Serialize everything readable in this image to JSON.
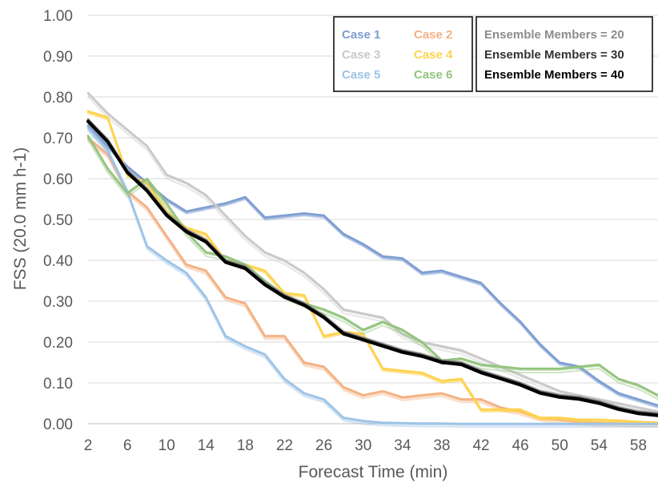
{
  "chart_data": {
    "type": "line",
    "xlabel": "Forecast Time (min)",
    "ylabel": "FSS (20.0 mm h-1)",
    "xlim": [
      2,
      60
    ],
    "ylim": [
      0,
      1.0
    ],
    "x_ticks": [
      "2",
      "6",
      "10",
      "14",
      "18",
      "22",
      "26",
      "30",
      "34",
      "38",
      "42",
      "46",
      "50",
      "54",
      "58"
    ],
    "y_ticks": [
      "0.00",
      "0.10",
      "0.20",
      "0.30",
      "0.40",
      "0.50",
      "0.60",
      "0.70",
      "0.80",
      "0.90",
      "1.00"
    ],
    "grid": "horizontal",
    "legend_cases": {
      "placement": "top",
      "entries": [
        {
          "label": "Case 1",
          "color": "#7e9dd2"
        },
        {
          "label": "Case 2",
          "color": "#f4b183"
        },
        {
          "label": "Case 3",
          "color": "#c9c9c9"
        },
        {
          "label": "Case 4",
          "color": "#ffd24d"
        },
        {
          "label": "Case 5",
          "color": "#9dc3e6"
        },
        {
          "label": "Case 6",
          "color": "#93c47d"
        }
      ]
    },
    "legend_members": {
      "placement": "top-right",
      "entries": [
        {
          "label": "Ensemble Members = 20",
          "color": "#8c8c8c"
        },
        {
          "label": "Ensemble Members = 30",
          "color": "#333333"
        },
        {
          "label": "Ensemble Members = 40",
          "color": "#000000"
        }
      ]
    },
    "x": [
      2,
      4,
      6,
      8,
      10,
      12,
      14,
      16,
      18,
      20,
      22,
      24,
      26,
      28,
      30,
      32,
      34,
      36,
      38,
      40,
      42,
      44,
      46,
      48,
      50,
      52,
      54,
      56,
      58,
      60
    ],
    "series": [
      {
        "name": "Case 1",
        "color": "#7e9dd2",
        "values": [
          0.73,
          0.68,
          0.63,
          0.59,
          0.55,
          0.52,
          0.53,
          0.54,
          0.555,
          0.505,
          0.51,
          0.515,
          0.51,
          0.465,
          0.44,
          0.41,
          0.405,
          0.37,
          0.375,
          0.36,
          0.345,
          0.295,
          0.25,
          0.195,
          0.15,
          0.14,
          0.105,
          0.075,
          0.06,
          0.045
        ]
      },
      {
        "name": "Case 2",
        "color": "#f4b183",
        "values": [
          0.7,
          0.66,
          0.57,
          0.53,
          0.46,
          0.39,
          0.375,
          0.31,
          0.295,
          0.215,
          0.215,
          0.15,
          0.14,
          0.09,
          0.07,
          0.08,
          0.065,
          0.07,
          0.075,
          0.06,
          0.06,
          0.04,
          0.03,
          0.015,
          0.01,
          0.005,
          0.003,
          0.002,
          0.001,
          0.0
        ]
      },
      {
        "name": "Case 3",
        "color": "#c9c9c9",
        "values": [
          0.81,
          0.76,
          0.72,
          0.68,
          0.61,
          0.59,
          0.56,
          0.51,
          0.46,
          0.42,
          0.4,
          0.37,
          0.33,
          0.28,
          0.27,
          0.26,
          0.22,
          0.2,
          0.19,
          0.18,
          0.16,
          0.14,
          0.12,
          0.1,
          0.08,
          0.07,
          0.06,
          0.05,
          0.04,
          0.03
        ]
      },
      {
        "name": "Case 4",
        "color": "#ffd24d",
        "values": [
          0.765,
          0.75,
          0.61,
          0.59,
          0.52,
          0.48,
          0.465,
          0.4,
          0.39,
          0.375,
          0.32,
          0.315,
          0.215,
          0.225,
          0.22,
          0.135,
          0.13,
          0.125,
          0.105,
          0.11,
          0.035,
          0.035,
          0.035,
          0.015,
          0.015,
          0.01,
          0.01,
          0.008,
          0.005,
          0.003
        ]
      },
      {
        "name": "Case 5",
        "color": "#9dc3e6",
        "values": [
          0.725,
          0.67,
          0.57,
          0.435,
          0.4,
          0.37,
          0.31,
          0.215,
          0.19,
          0.17,
          0.11,
          0.075,
          0.06,
          0.015,
          0.007,
          0.003,
          0.002,
          0.001,
          0.001,
          0.0,
          0.0,
          0.0,
          0.0,
          0.0,
          0.0,
          0.0,
          0.0,
          0.0,
          0.0,
          0.0
        ]
      },
      {
        "name": "Case 6",
        "color": "#93c47d",
        "values": [
          0.705,
          0.625,
          0.565,
          0.6,
          0.54,
          0.47,
          0.42,
          0.41,
          0.39,
          0.35,
          0.315,
          0.295,
          0.28,
          0.26,
          0.23,
          0.25,
          0.23,
          0.2,
          0.155,
          0.16,
          0.145,
          0.14,
          0.135,
          0.135,
          0.135,
          0.14,
          0.145,
          0.11,
          0.095,
          0.07
        ]
      },
      {
        "name": "Ensemble Members = 40",
        "color": "#000000",
        "values": [
          0.74,
          0.69,
          0.615,
          0.57,
          0.51,
          0.47,
          0.445,
          0.395,
          0.38,
          0.34,
          0.31,
          0.29,
          0.26,
          0.22,
          0.205,
          0.19,
          0.175,
          0.165,
          0.15,
          0.145,
          0.125,
          0.11,
          0.095,
          0.075,
          0.065,
          0.06,
          0.05,
          0.035,
          0.025,
          0.02
        ]
      }
    ]
  }
}
